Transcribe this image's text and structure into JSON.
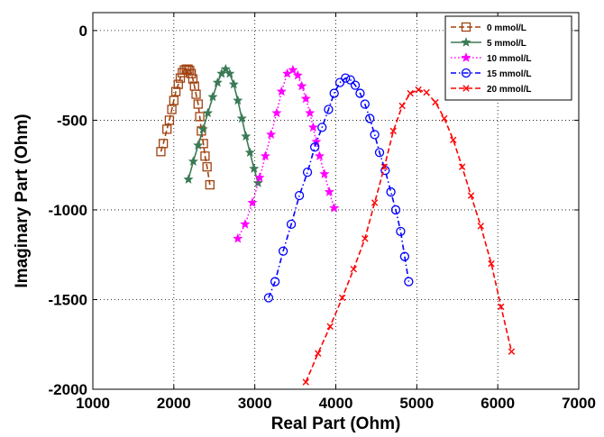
{
  "chart_data": {
    "type": "line",
    "xlabel": "Real Part (Ohm)",
    "ylabel": "Imaginary Part (Ohm)",
    "xlim": [
      1000,
      7000
    ],
    "ylim": [
      -2000,
      100
    ],
    "xticks": [
      1000,
      2000,
      3000,
      4000,
      5000,
      6000,
      7000
    ],
    "yticks": [
      0,
      -500,
      -1000,
      -1500,
      -2000
    ],
    "grid": true,
    "legend_position": "top-right",
    "series": [
      {
        "name": "0 mmol/L",
        "color": "#a0420f",
        "marker": "square",
        "line_style": "dashed",
        "x": [
          1840,
          1870,
          1915,
          1945,
          1975,
          2000,
          2025,
          2055,
          2080,
          2105,
          2130,
          2155,
          2175,
          2195,
          2215,
          2235,
          2255,
          2275,
          2300,
          2320,
          2340,
          2365,
          2385,
          2410,
          2445
        ],
        "y": [
          -675,
          -630,
          -550,
          -500,
          -440,
          -390,
          -340,
          -300,
          -265,
          -235,
          -220,
          -215,
          -215,
          -222,
          -240,
          -270,
          -310,
          -355,
          -410,
          -480,
          -560,
          -630,
          -700,
          -760,
          -860
        ]
      },
      {
        "name": "5 mmol/L",
        "color": "#3a7a55",
        "marker": "star",
        "line_style": "solid",
        "x": [
          2180,
          2240,
          2300,
          2360,
          2420,
          2480,
          2540,
          2590,
          2640,
          2690,
          2740,
          2790,
          2840,
          2890,
          2940,
          2990,
          3040
        ],
        "y": [
          -830,
          -730,
          -640,
          -550,
          -460,
          -370,
          -290,
          -240,
          -215,
          -240,
          -300,
          -390,
          -490,
          -590,
          -680,
          -770,
          -850
        ]
      },
      {
        "name": "10 mmol/L",
        "color": "#ff00ff",
        "marker": "star",
        "line_style": "dotted",
        "x": [
          2790,
          2880,
          2970,
          3060,
          3130,
          3200,
          3270,
          3330,
          3400,
          3470,
          3530,
          3580,
          3630,
          3680,
          3720,
          3760,
          3800,
          3860,
          3920,
          3980
        ],
        "y": [
          -1160,
          -1080,
          -960,
          -820,
          -700,
          -580,
          -460,
          -340,
          -240,
          -220,
          -250,
          -310,
          -380,
          -460,
          -540,
          -620,
          -700,
          -800,
          -900,
          -990
        ]
      },
      {
        "name": "15 mmol/L",
        "color": "#0000ff",
        "marker": "circle",
        "line_style": "dashdot",
        "x": [
          3170,
          3250,
          3350,
          3450,
          3550,
          3650,
          3740,
          3830,
          3910,
          3980,
          4050,
          4120,
          4180,
          4240,
          4300,
          4360,
          4420,
          4480,
          4540,
          4610,
          4680,
          4740,
          4800,
          4850,
          4900
        ],
        "y": [
          -1490,
          -1400,
          -1230,
          -1080,
          -920,
          -790,
          -650,
          -540,
          -440,
          -350,
          -290,
          -265,
          -275,
          -305,
          -350,
          -410,
          -490,
          -580,
          -680,
          -780,
          -900,
          -1000,
          -1120,
          -1260,
          -1400
        ]
      },
      {
        "name": "20 mmol/L",
        "color": "#ff0000",
        "marker": "x",
        "line_style": "dashed",
        "x": [
          3630,
          3780,
          3930,
          4080,
          4220,
          4360,
          4480,
          4600,
          4710,
          4820,
          4920,
          5020,
          5120,
          5230,
          5340,
          5450,
          5560,
          5670,
          5790,
          5920,
          6040,
          6170
        ],
        "y": [
          -1960,
          -1800,
          -1650,
          -1490,
          -1330,
          -1160,
          -960,
          -760,
          -560,
          -420,
          -350,
          -330,
          -345,
          -400,
          -490,
          -610,
          -760,
          -920,
          -1090,
          -1300,
          -1540,
          -1790
        ]
      }
    ]
  }
}
